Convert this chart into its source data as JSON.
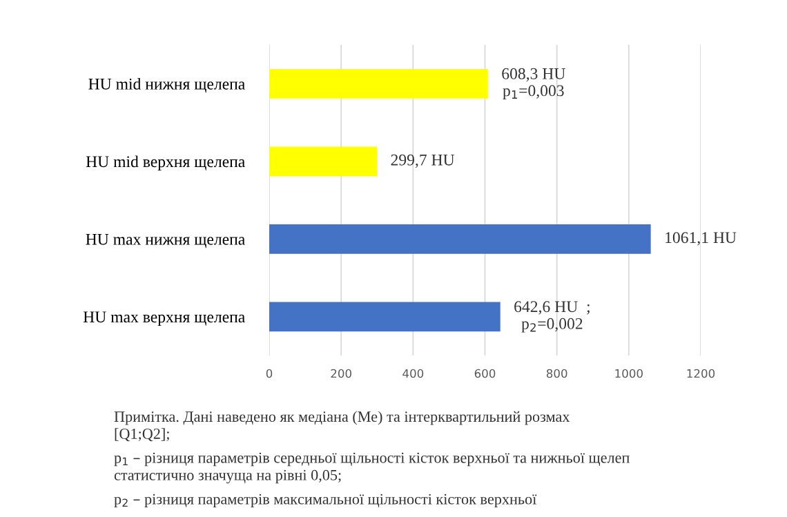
{
  "chart_data": {
    "type": "bar",
    "orientation": "horizontal",
    "categories": [
      "HU mid нижня щелепа",
      "HU mid верхня щелепа",
      "HU max нижня щелепа",
      "HU max верхня щелепа"
    ],
    "values": [
      608.3,
      299.7,
      1061.1,
      642.6
    ],
    "colors": [
      "#ffff00",
      "#ffff00",
      "#4472c4",
      "#4472c4"
    ],
    "value_labels": [
      "608,3 HU\np$_{1}$=0,003",
      "299,7 HU",
      "1061,1 HU",
      "642,6 HU  ;\np$_{2}$=0,002"
    ],
    "xlim": [
      0,
      1200
    ],
    "xticks": [
      0,
      200,
      400,
      600,
      800,
      1000,
      1200
    ],
    "grid": "x",
    "legend": false,
    "annotations": [
      "Примітка. Дані наведено як медіана (Ме) та інтерквартильний розмах\n[Q1;Q2];",
      "p$_{1}$ – різниця параметрів середньої щільності кісток верхньої та нижньої щелеп\nстатистично значуща на рівні 0,05;",
      "p$_{2}$ – різниця параметрів максимальної щільності кісток верхньої"
    ]
  }
}
